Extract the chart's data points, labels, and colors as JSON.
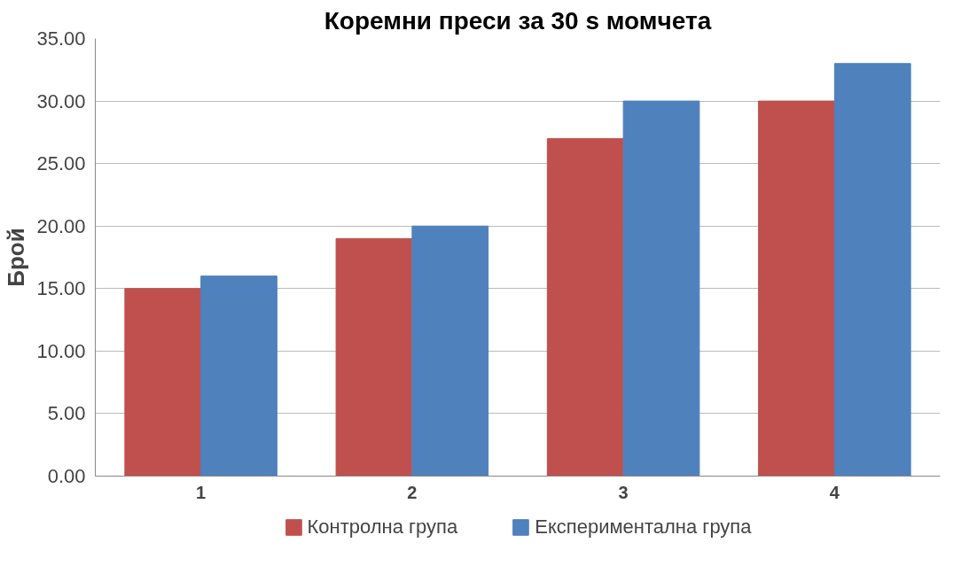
{
  "chart_data": {
    "type": "bar",
    "title": "Коремни преси за 30 s момчета",
    "ylabel": "Брой",
    "categories": [
      "1",
      "2",
      "3",
      "4"
    ],
    "series": [
      {
        "name": "Контролна група",
        "color": "#c0504d",
        "values": [
          15,
          19,
          27,
          30
        ]
      },
      {
        "name": "Експериментална група",
        "color": "#4f81bd",
        "values": [
          16,
          20,
          30,
          33
        ]
      }
    ],
    "ylim": [
      0,
      35
    ],
    "yticks": [
      {
        "value": 0,
        "label": "0.00"
      },
      {
        "value": 5,
        "label": "5.00"
      },
      {
        "value": 10,
        "label": "10.00"
      },
      {
        "value": 15,
        "label": "15.00"
      },
      {
        "value": 20,
        "label": "20.00"
      },
      {
        "value": 25,
        "label": "25.00"
      },
      {
        "value": 30,
        "label": "30.00"
      },
      {
        "value": 35,
        "label": "35.00"
      }
    ],
    "grid": "y",
    "legend": "bottom"
  }
}
